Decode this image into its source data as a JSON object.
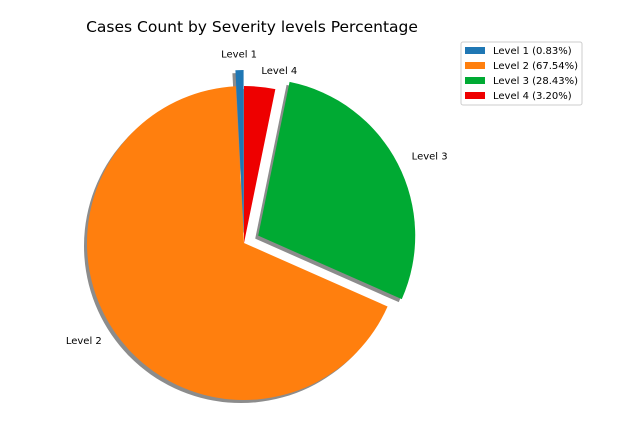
{
  "chart_data": {
    "type": "pie",
    "title": "Cases Count by Severity levels Percentage",
    "categories": [
      "Level 1",
      "Level 2",
      "Level 3",
      "Level 4"
    ],
    "values": [
      0.83,
      67.54,
      28.43,
      3.2
    ],
    "colors": [
      "#1f77b4",
      "#ff7f0e",
      "#00aa33",
      "#ee0000"
    ],
    "explode": [
      true,
      false,
      true,
      false
    ],
    "shadow": true,
    "legend": {
      "position": "top-right",
      "entries": [
        "Level 1 (0.83%)",
        "Level 2 (67.54%)",
        "Level 3 (28.43%)",
        "Level 4 (3.20%)"
      ]
    }
  }
}
